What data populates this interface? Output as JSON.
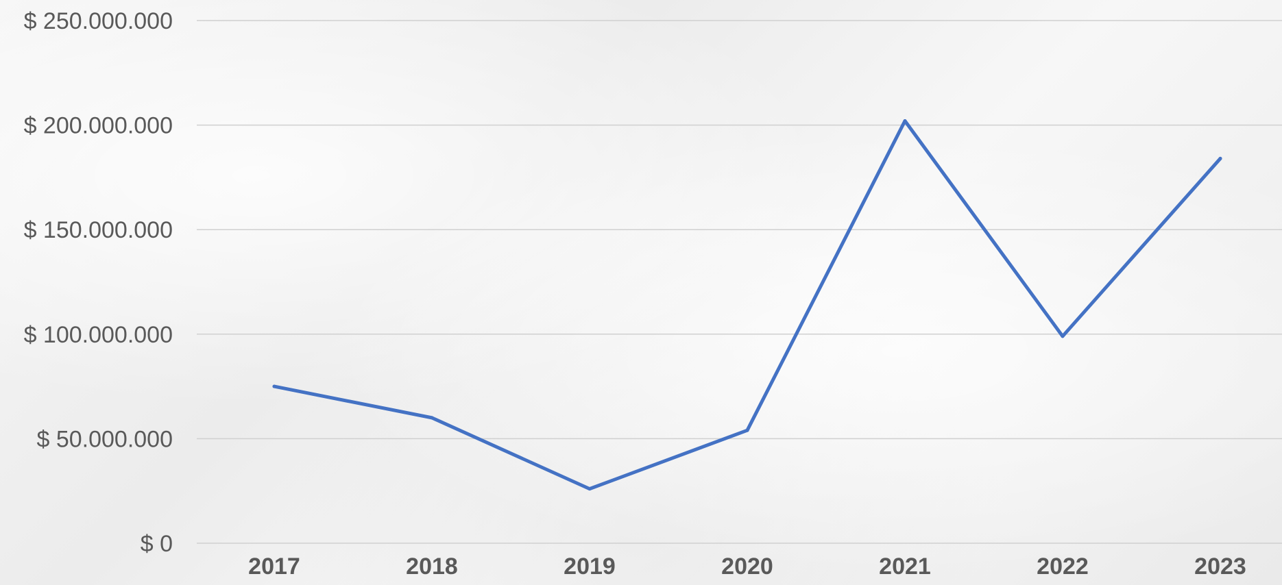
{
  "chart_data": {
    "type": "line",
    "title": "",
    "xlabel": "",
    "ylabel": "",
    "categories": [
      "2017",
      "2018",
      "2019",
      "2020",
      "2021",
      "2022",
      "2023"
    ],
    "series": [
      {
        "values": [
          75000000,
          60000000,
          26000000,
          54000000,
          202000000,
          99000000,
          184000000
        ],
        "color": "#4472c4"
      }
    ],
    "ylim": [
      0,
      250000000
    ],
    "yticks": [
      0,
      50000000,
      100000000,
      150000000,
      200000000,
      250000000
    ],
    "ytick_labels": [
      "$ 0",
      "$ 50.000.000",
      "$ 100.000.000",
      "$ 150.000.000",
      "$ 200.000.000",
      "$ 250.000.000"
    ],
    "grid": true,
    "legend": "none"
  }
}
